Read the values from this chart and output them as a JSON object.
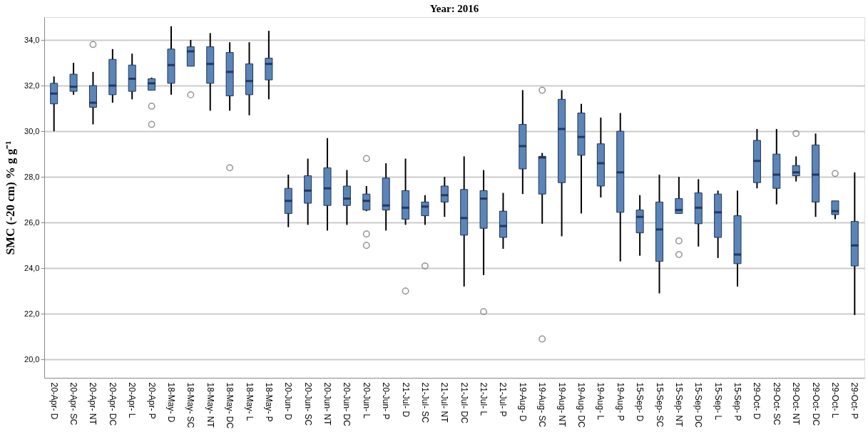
{
  "chart_data": {
    "type": "box",
    "title": "Year: 2016",
    "ylabel": "SMC (-20 cm) % g g⁻¹",
    "categories": [
      "20-Apr- D",
      "20-Apr- SC",
      "20-Apr- NT",
      "20-Apr- DC",
      "20-Apr- L",
      "20-Apr- P",
      "18-May- D",
      "18-May- SC",
      "18-May- NT",
      "18-May- DC",
      "18-May- L",
      "18-May- P",
      "20-Jun- D",
      "20-Jun- SC",
      "20-Jun- NT",
      "20-Jun- DC",
      "20-Jun- L",
      "20-Jun- P",
      "21-Jul- D",
      "21-Jul- SC",
      "21-Jul- NT",
      "21-Jul- DC",
      "21-Jul- L",
      "21-Jul- P",
      "19-Aug- D",
      "19-Aug- SC",
      "19-Aug- NT",
      "19-Aug- DC",
      "19-Aug- L",
      "19-Aug- P",
      "15-Sep- D",
      "15-Sep- SC",
      "15-Sep- NT",
      "15-Sep- DC",
      "15-Sep- L",
      "15-Sep- P",
      "29-Oct- D",
      "29-Oct- SC",
      "29-Oct- NT",
      "29-Oct- DC",
      "29-Oct- L",
      "29-Oct- P"
    ],
    "color": "#5b85b8",
    "boxes": [
      {
        "low": 30.0,
        "q1": 31.2,
        "median": 31.65,
        "q3": 32.1,
        "high": 32.4
      },
      {
        "low": 31.6,
        "q1": 31.75,
        "median": 31.95,
        "q3": 32.5,
        "high": 33.0
      },
      {
        "low": 30.3,
        "q1": 31.05,
        "median": 31.25,
        "q3": 32.0,
        "high": 32.6,
        "outliers": [
          33.8
        ]
      },
      {
        "low": 31.25,
        "q1": 31.6,
        "median": 32.0,
        "q3": 33.15,
        "high": 33.6
      },
      {
        "low": 31.4,
        "q1": 31.75,
        "median": 32.3,
        "q3": 32.9,
        "high": 33.4
      },
      {
        "low": 31.8,
        "q1": 31.8,
        "median": 32.1,
        "q3": 32.3,
        "high": 32.35,
        "outliers": [
          31.1,
          30.3
        ]
      },
      {
        "low": 31.6,
        "q1": 32.1,
        "median": 32.9,
        "q3": 33.6,
        "high": 34.6
      },
      {
        "low": 32.85,
        "q1": 32.85,
        "median": 33.5,
        "q3": 33.7,
        "high": 34.0,
        "outliers": [
          31.6
        ]
      },
      {
        "low": 30.9,
        "q1": 32.1,
        "median": 32.95,
        "q3": 33.7,
        "high": 34.3
      },
      {
        "low": 30.9,
        "q1": 31.55,
        "median": 32.6,
        "q3": 33.45,
        "high": 33.9,
        "outliers": [
          28.4
        ]
      },
      {
        "low": 30.7,
        "q1": 31.6,
        "median": 32.2,
        "q3": 32.95,
        "high": 33.9
      },
      {
        "low": 31.4,
        "q1": 32.25,
        "median": 32.95,
        "q3": 33.2,
        "high": 34.4
      },
      {
        "low": 25.8,
        "q1": 26.4,
        "median": 26.95,
        "q3": 27.5,
        "high": 28.1
      },
      {
        "low": 25.9,
        "q1": 26.85,
        "median": 27.4,
        "q3": 28.05,
        "high": 28.8
      },
      {
        "low": 25.65,
        "q1": 26.75,
        "median": 27.5,
        "q3": 28.4,
        "high": 29.7
      },
      {
        "low": 25.9,
        "q1": 26.75,
        "median": 27.05,
        "q3": 27.6,
        "high": 28.3
      },
      {
        "low": 26.5,
        "q1": 26.55,
        "median": 26.95,
        "q3": 27.25,
        "high": 27.6,
        "outliers": [
          28.8,
          25.5,
          25.0
        ]
      },
      {
        "low": 25.65,
        "q1": 26.55,
        "median": 26.75,
        "q3": 27.95,
        "high": 28.6
      },
      {
        "low": 25.9,
        "q1": 26.15,
        "median": 26.65,
        "q3": 27.4,
        "high": 28.8,
        "outliers": [
          23.0
        ]
      },
      {
        "low": 25.9,
        "q1": 26.3,
        "median": 26.7,
        "q3": 26.9,
        "high": 27.2,
        "outliers": [
          24.1
        ]
      },
      {
        "low": 26.25,
        "q1": 26.9,
        "median": 27.2,
        "q3": 27.6,
        "high": 28.0
      },
      {
        "low": 23.2,
        "q1": 25.45,
        "median": 26.2,
        "q3": 27.45,
        "high": 28.9
      },
      {
        "low": 23.7,
        "q1": 25.75,
        "median": 27.05,
        "q3": 27.4,
        "high": 28.3,
        "outliers": [
          22.1
        ]
      },
      {
        "low": 24.85,
        "q1": 25.35,
        "median": 25.85,
        "q3": 26.5,
        "high": 27.3
      },
      {
        "low": 27.25,
        "q1": 28.35,
        "median": 29.35,
        "q3": 30.3,
        "high": 31.8
      },
      {
        "low": 25.95,
        "q1": 27.25,
        "median": 28.85,
        "q3": 28.9,
        "high": 29.05,
        "outliers": [
          31.8,
          20.9
        ]
      },
      {
        "low": 25.4,
        "q1": 27.75,
        "median": 30.1,
        "q3": 31.4,
        "high": 31.8
      },
      {
        "low": 26.4,
        "q1": 28.95,
        "median": 29.75,
        "q3": 30.8,
        "high": 31.2
      },
      {
        "low": 27.1,
        "q1": 27.6,
        "median": 28.6,
        "q3": 29.45,
        "high": 30.6
      },
      {
        "low": 24.3,
        "q1": 26.45,
        "median": 28.2,
        "q3": 30.0,
        "high": 30.8
      },
      {
        "low": 24.55,
        "q1": 25.55,
        "median": 26.25,
        "q3": 26.55,
        "high": 27.2
      },
      {
        "low": 22.9,
        "q1": 24.3,
        "median": 25.7,
        "q3": 26.9,
        "high": 28.1
      },
      {
        "low": 26.4,
        "q1": 26.4,
        "median": 26.55,
        "q3": 27.05,
        "high": 28.0,
        "outliers": [
          25.2,
          24.6
        ]
      },
      {
        "low": 24.95,
        "q1": 25.95,
        "median": 26.65,
        "q3": 27.3,
        "high": 27.9
      },
      {
        "low": 24.45,
        "q1": 25.35,
        "median": 26.45,
        "q3": 27.25,
        "high": 27.4
      },
      {
        "low": 23.2,
        "q1": 24.2,
        "median": 24.6,
        "q3": 26.3,
        "high": 27.4
      },
      {
        "low": 27.5,
        "q1": 27.75,
        "median": 28.7,
        "q3": 29.6,
        "high": 30.1
      },
      {
        "low": 26.8,
        "q1": 27.5,
        "median": 28.1,
        "q3": 29.0,
        "high": 30.1
      },
      {
        "low": 27.8,
        "q1": 28.05,
        "median": 28.2,
        "q3": 28.5,
        "high": 28.9,
        "outliers": [
          29.9
        ]
      },
      {
        "low": 26.25,
        "q1": 26.9,
        "median": 28.1,
        "q3": 29.4,
        "high": 29.9
      },
      {
        "low": 26.15,
        "q1": 26.35,
        "median": 26.5,
        "q3": 26.95,
        "high": 26.95,
        "outliers": [
          28.15
        ]
      },
      {
        "low": 21.95,
        "q1": 24.1,
        "median": 25.0,
        "q3": 26.05,
        "high": 28.2
      }
    ],
    "ylim": [
      19.2,
      35.0
    ],
    "yticks": [
      {
        "value": 20,
        "label": "20,0"
      },
      {
        "value": 22,
        "label": "22,0"
      },
      {
        "value": 24,
        "label": "24,0"
      },
      {
        "value": 26,
        "label": "26,0"
      },
      {
        "value": 28,
        "label": "28,0"
      },
      {
        "value": 30,
        "label": "30,0"
      },
      {
        "value": 32,
        "label": "32,0"
      },
      {
        "value": 34,
        "label": "34,0"
      }
    ],
    "grid": "y"
  }
}
